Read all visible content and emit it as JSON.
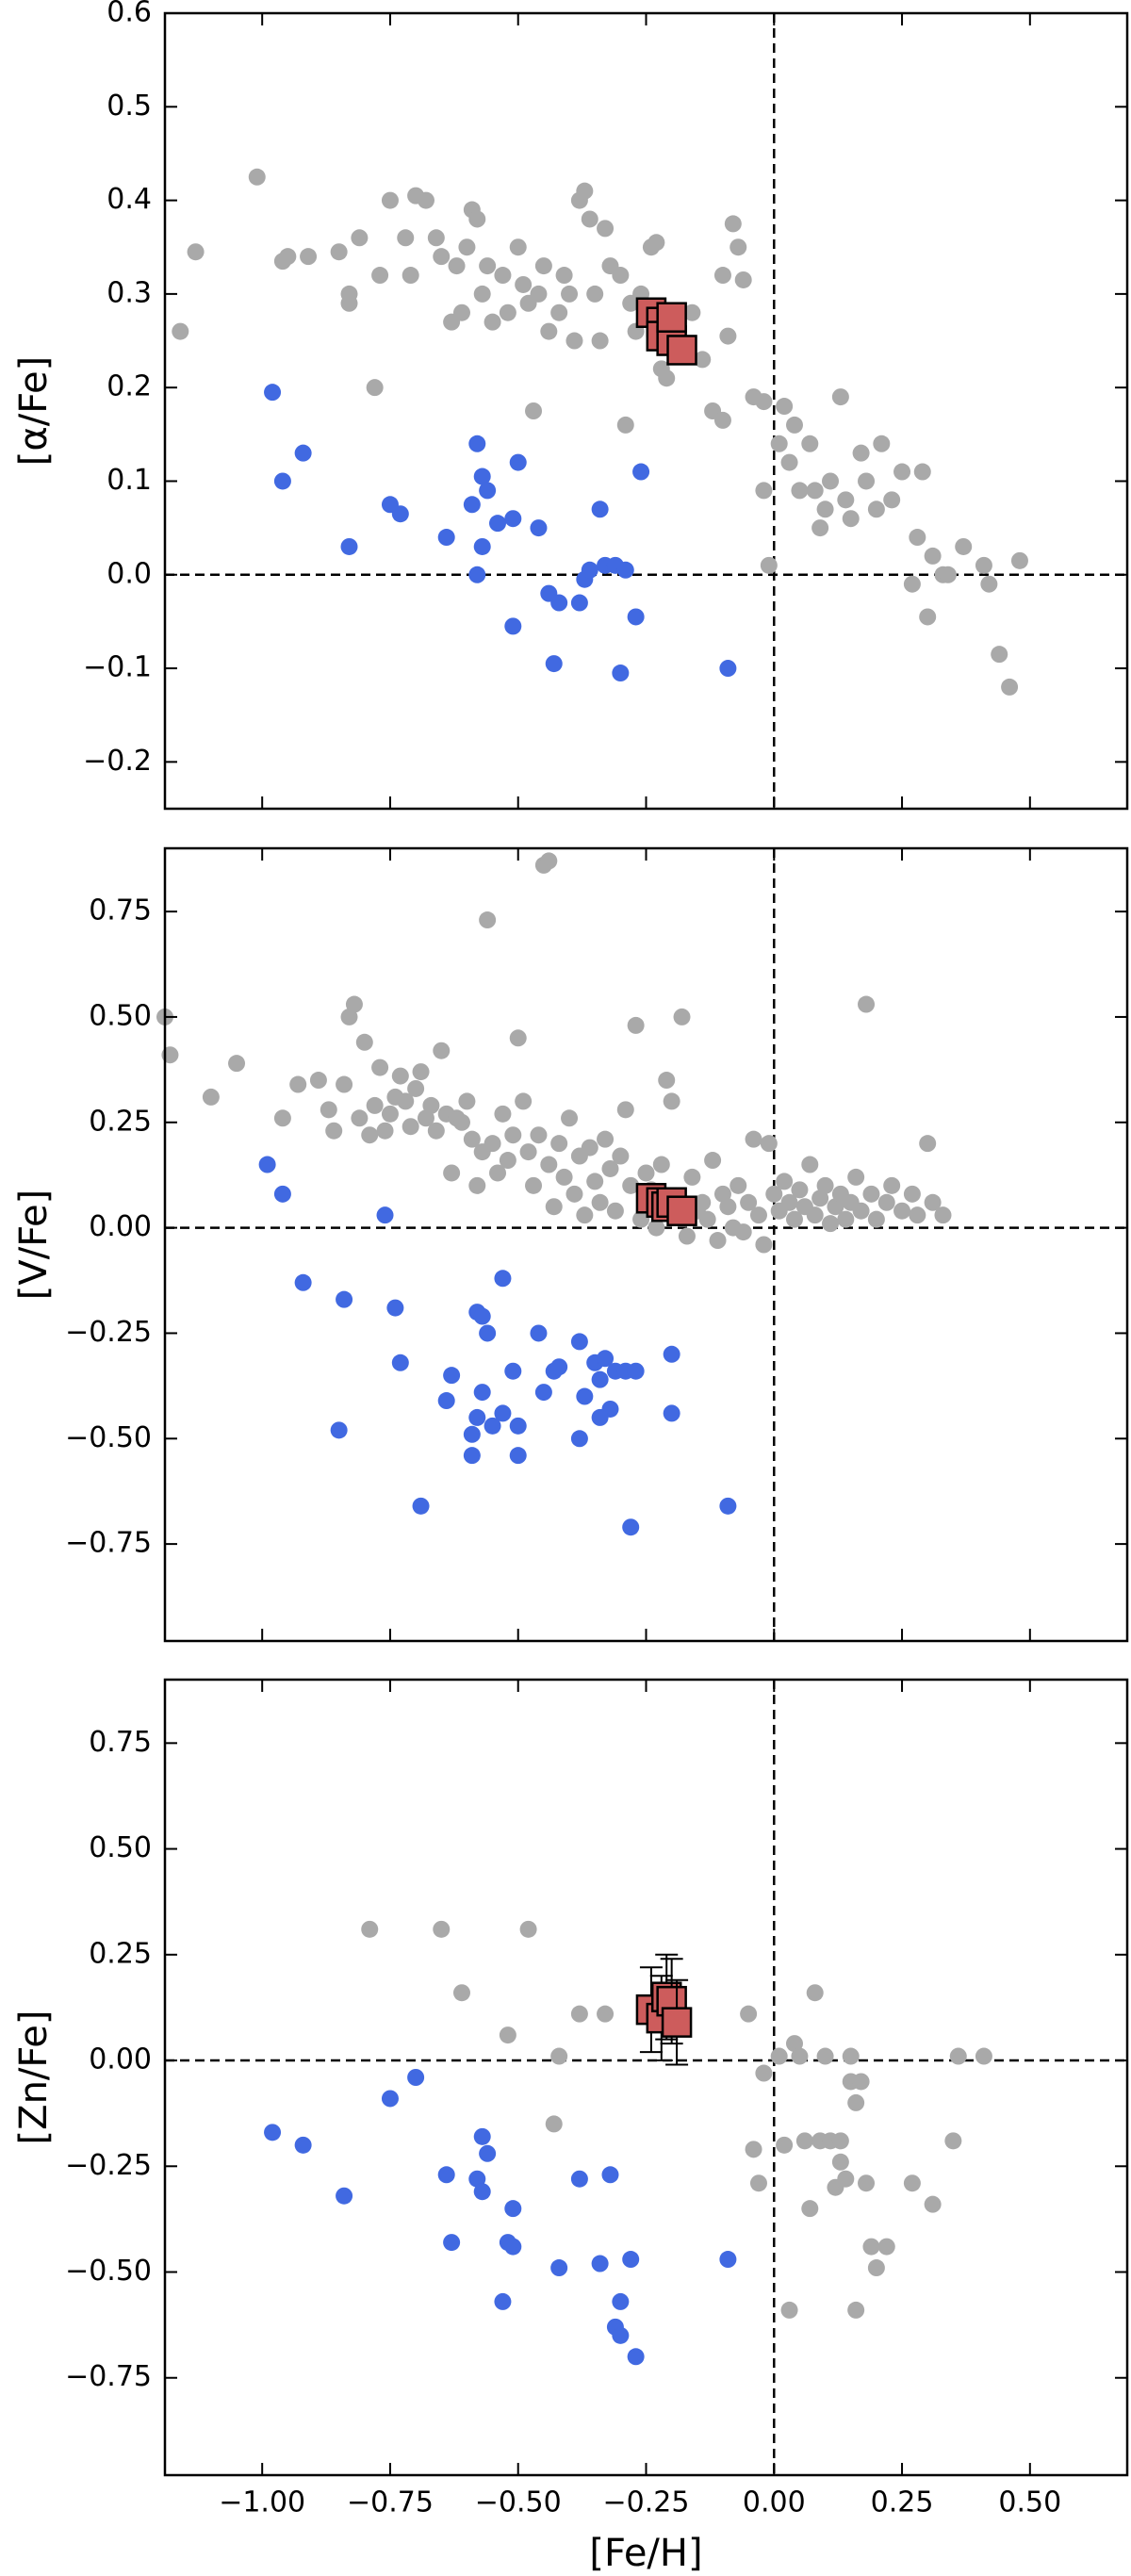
{
  "chart_data": [
    {
      "type": "scatter",
      "ylabel": "[α/Fe]",
      "xlim": [
        -1.19,
        0.69
      ],
      "ylim": [
        -0.25,
        0.6
      ],
      "xticks": [
        -1,
        -0.75,
        -0.5,
        -0.25,
        0,
        0.25,
        0.5
      ],
      "yticks": [
        {
          "value": -0.2,
          "label": "−0.2"
        },
        {
          "value": -0.1,
          "label": "−0.1"
        },
        {
          "value": 0,
          "label": "0.0"
        },
        0.1,
        0.2,
        0.3,
        0.4,
        0.5,
        0.6
      ],
      "hline": 0,
      "vline": 0,
      "series": [
        {
          "color": "#a9a9a9",
          "marker": "circle",
          "x": [
            -1.16,
            -1.13,
            -1.01,
            -0.96,
            -0.95,
            -0.91,
            -0.85,
            -0.83,
            -0.83,
            -0.81,
            -0.78,
            -0.77,
            -0.75,
            -0.72,
            -0.71,
            -0.7,
            -0.68,
            -0.66,
            -0.65,
            -0.63,
            -0.62,
            -0.61,
            -0.6,
            -0.59,
            -0.58,
            -0.57,
            -0.56,
            -0.55,
            -0.53,
            -0.52,
            -0.5,
            -0.49,
            -0.48,
            -0.47,
            -0.46,
            -0.45,
            -0.44,
            -0.42,
            -0.41,
            -0.4,
            -0.39,
            -0.38,
            -0.37,
            -0.36,
            -0.35,
            -0.34,
            -0.33,
            -0.32,
            -0.3,
            -0.29,
            -0.28,
            -0.27,
            -0.26,
            -0.24,
            -0.23,
            -0.22,
            -0.21,
            -0.19,
            -0.17,
            -0.16,
            -0.14,
            -0.12,
            -0.1,
            -0.1,
            -0.09,
            -0.08,
            -0.07,
            -0.06,
            -0.04,
            -0.02,
            -0.02,
            -0.01,
            0.01,
            0.02,
            0.03,
            0.04,
            0.05,
            0.07,
            0.08,
            0.09,
            0.1,
            0.11,
            0.13,
            0.14,
            0.15,
            0.17,
            0.18,
            0.2,
            0.21,
            0.23,
            0.25,
            0.27,
            0.28,
            0.29,
            0.3,
            0.31,
            0.33,
            0.34,
            0.37,
            0.41,
            0.42,
            0.44,
            0.46,
            0.48
          ],
          "values": [
            0.26,
            0.345,
            0.425,
            0.335,
            0.34,
            0.34,
            0.345,
            0.3,
            0.29,
            0.36,
            0.2,
            0.32,
            0.4,
            0.36,
            0.32,
            0.405,
            0.4,
            0.36,
            0.34,
            0.27,
            0.33,
            0.28,
            0.35,
            0.39,
            0.38,
            0.3,
            0.33,
            0.27,
            0.32,
            0.28,
            0.35,
            0.31,
            0.29,
            0.175,
            0.3,
            0.33,
            0.26,
            0.28,
            0.32,
            0.3,
            0.25,
            0.4,
            0.41,
            0.38,
            0.3,
            0.25,
            0.37,
            0.33,
            0.32,
            0.16,
            0.29,
            0.26,
            0.3,
            0.35,
            0.355,
            0.22,
            0.21,
            0.28,
            0.24,
            0.28,
            0.23,
            0.175,
            0.165,
            0.32,
            0.255,
            0.375,
            0.35,
            0.315,
            0.19,
            0.185,
            0.09,
            0.01,
            0.14,
            0.18,
            0.12,
            0.16,
            0.09,
            0.14,
            0.09,
            0.05,
            0.07,
            0.1,
            0.19,
            0.08,
            0.06,
            0.13,
            0.1,
            0.07,
            0.14,
            0.08,
            0.11,
            -0.01,
            0.04,
            0.11,
            -0.045,
            0.02,
            0,
            0,
            0.03,
            0.01,
            -0.01,
            -0.085,
            -0.12,
            0.015
          ]
        },
        {
          "color": "#4169e1",
          "marker": "circle",
          "x": [
            -0.98,
            -0.96,
            -0.92,
            -0.83,
            -0.75,
            -0.73,
            -0.64,
            -0.59,
            -0.58,
            -0.58,
            -0.57,
            -0.57,
            -0.56,
            -0.54,
            -0.51,
            -0.51,
            -0.5,
            -0.46,
            -0.44,
            -0.43,
            -0.42,
            -0.38,
            -0.37,
            -0.36,
            -0.34,
            -0.33,
            -0.31,
            -0.3,
            -0.29,
            -0.27,
            -0.26,
            -0.09
          ],
          "values": [
            0.195,
            0.1,
            0.13,
            0.03,
            0.075,
            0.065,
            0.04,
            0.075,
            0.14,
            0,
            0.105,
            0.03,
            0.09,
            0.055,
            0.06,
            -0.055,
            0.12,
            0.05,
            -0.02,
            -0.095,
            -0.03,
            -0.03,
            -0.005,
            0.005,
            0.07,
            0.01,
            0.01,
            -0.105,
            0.005,
            -0.045,
            0.11,
            -0.1
          ]
        },
        {
          "color": "#cd5c5c",
          "marker": "square",
          "x": [
            -0.24,
            -0.22,
            -0.22,
            -0.2,
            -0.2,
            -0.18
          ],
          "values": [
            0.28,
            0.27,
            0.255,
            0.25,
            0.275,
            0.24
          ]
        }
      ]
    },
    {
      "type": "scatter",
      "ylabel": "[V/Fe]",
      "xlim": [
        -1.19,
        0.69
      ],
      "ylim": [
        -0.98,
        0.9
      ],
      "xticks": [
        -1,
        -0.75,
        -0.5,
        -0.25,
        0,
        0.25,
        0.5
      ],
      "yticks": [
        {
          "value": -0.75,
          "label": "−0.75"
        },
        {
          "value": -0.5,
          "label": "−0.50"
        },
        {
          "value": -0.25,
          "label": "−0.25"
        },
        {
          "value": 0,
          "label": "0.00"
        },
        0.25,
        {
          "value": 0.5,
          "label": "0.50"
        },
        0.75
      ],
      "hline": 0,
      "vline": 0,
      "series": [
        {
          "color": "#a9a9a9",
          "marker": "circle",
          "x": [
            -1.19,
            -1.18,
            -1.1,
            -1.05,
            -0.96,
            -0.93,
            -0.89,
            -0.87,
            -0.86,
            -0.84,
            -0.83,
            -0.82,
            -0.81,
            -0.8,
            -0.79,
            -0.78,
            -0.77,
            -0.76,
            -0.75,
            -0.74,
            -0.73,
            -0.72,
            -0.71,
            -0.7,
            -0.69,
            -0.68,
            -0.67,
            -0.66,
            -0.65,
            -0.64,
            -0.63,
            -0.62,
            -0.61,
            -0.6,
            -0.59,
            -0.58,
            -0.57,
            -0.56,
            -0.55,
            -0.54,
            -0.53,
            -0.52,
            -0.51,
            -0.5,
            -0.49,
            -0.48,
            -0.47,
            -0.46,
            -0.45,
            -0.44,
            -0.44,
            -0.43,
            -0.42,
            -0.41,
            -0.4,
            -0.39,
            -0.38,
            -0.37,
            -0.36,
            -0.35,
            -0.34,
            -0.33,
            -0.32,
            -0.31,
            -0.3,
            -0.29,
            -0.28,
            -0.27,
            -0.26,
            -0.25,
            -0.24,
            -0.23,
            -0.22,
            -0.21,
            -0.2,
            -0.19,
            -0.18,
            -0.17,
            -0.16,
            -0.15,
            -0.14,
            -0.13,
            -0.12,
            -0.11,
            -0.1,
            -0.09,
            -0.08,
            -0.07,
            -0.06,
            -0.05,
            -0.04,
            -0.03,
            -0.02,
            -0.01,
            0,
            0.01,
            0.02,
            0.03,
            0.04,
            0.05,
            0.06,
            0.07,
            0.08,
            0.09,
            0.1,
            0.11,
            0.12,
            0.13,
            0.14,
            0.15,
            0.16,
            0.17,
            0.18,
            0.19,
            0.2,
            0.22,
            0.23,
            0.25,
            0.27,
            0.28,
            0.3,
            0.31,
            0.33
          ],
          "values": [
            0.5,
            0.41,
            0.31,
            0.39,
            0.26,
            0.34,
            0.35,
            0.28,
            0.23,
            0.34,
            0.5,
            0.53,
            0.26,
            0.44,
            0.22,
            0.29,
            0.38,
            0.23,
            0.27,
            0.31,
            0.36,
            0.3,
            0.24,
            0.33,
            0.37,
            0.26,
            0.29,
            0.23,
            0.42,
            0.27,
            0.13,
            0.26,
            0.25,
            0.3,
            0.21,
            0.1,
            0.18,
            0.73,
            0.2,
            0.13,
            0.27,
            0.16,
            0.22,
            0.45,
            0.3,
            0.18,
            0.1,
            0.22,
            0.86,
            0.87,
            0.15,
            0.05,
            0.2,
            0.12,
            0.26,
            0.08,
            0.17,
            0.03,
            0.19,
            0.11,
            0.06,
            0.21,
            0.14,
            0.04,
            0.17,
            0.28,
            0.1,
            0.48,
            0.02,
            0.13,
            0.09,
            0,
            0.15,
            0.35,
            0.3,
            0.07,
            0.5,
            -0.02,
            0.12,
            0.04,
            0.06,
            0.02,
            0.16,
            -0.03,
            0.08,
            0.05,
            0,
            0.1,
            -0.01,
            0.06,
            0.21,
            0.03,
            -0.04,
            0.2,
            0.08,
            0.04,
            0.11,
            0.06,
            0.02,
            0.09,
            0.05,
            0.15,
            0.03,
            0.07,
            0.1,
            0.01,
            0.05,
            0.08,
            0.02,
            0.06,
            0.12,
            0.04,
            0.53,
            0.08,
            0.02,
            0.06,
            0.1,
            0.04,
            0.08,
            0.03,
            0.2,
            0.06,
            0.03
          ]
        },
        {
          "color": "#4169e1",
          "marker": "circle",
          "x": [
            -0.99,
            -0.96,
            -0.92,
            -0.85,
            -0.84,
            -0.76,
            -0.74,
            -0.73,
            -0.69,
            -0.64,
            -0.63,
            -0.59,
            -0.59,
            -0.58,
            -0.58,
            -0.57,
            -0.57,
            -0.56,
            -0.55,
            -0.53,
            -0.53,
            -0.51,
            -0.5,
            -0.5,
            -0.46,
            -0.45,
            -0.43,
            -0.42,
            -0.38,
            -0.38,
            -0.37,
            -0.35,
            -0.34,
            -0.33,
            -0.32,
            -0.31,
            -0.29,
            -0.28,
            -0.34,
            -0.2,
            -0.2,
            -0.27,
            -0.09
          ],
          "values": [
            0.15,
            0.08,
            -0.13,
            -0.48,
            -0.17,
            0.03,
            -0.19,
            -0.32,
            -0.66,
            -0.41,
            -0.35,
            -0.54,
            -0.49,
            -0.45,
            -0.2,
            -0.21,
            -0.39,
            -0.25,
            -0.47,
            -0.12,
            -0.44,
            -0.34,
            -0.47,
            -0.54,
            -0.25,
            -0.39,
            -0.34,
            -0.33,
            -0.27,
            -0.5,
            -0.4,
            -0.32,
            -0.36,
            -0.31,
            -0.43,
            -0.34,
            -0.34,
            -0.71,
            -0.45,
            -0.44,
            -0.3,
            -0.34,
            -0.66
          ]
        },
        {
          "color": "#cd5c5c",
          "marker": "square",
          "x": [
            -0.24,
            -0.22,
            -0.21,
            -0.2,
            -0.18
          ],
          "values": [
            0.07,
            0.06,
            0.05,
            0.06,
            0.04
          ]
        }
      ]
    },
    {
      "type": "scatter",
      "ylabel": "[Zn/Fe]",
      "xlabel": "[Fe/H]",
      "xlim": [
        -1.19,
        0.69
      ],
      "ylim": [
        -0.98,
        0.9
      ],
      "xticks": [
        {
          "value": -1,
          "label": "−1.00"
        },
        {
          "value": -0.75,
          "label": "−0.75"
        },
        {
          "value": -0.5,
          "label": "−0.50"
        },
        {
          "value": -0.25,
          "label": "−0.25"
        },
        {
          "value": 0,
          "label": "0.00"
        },
        0.25,
        {
          "value": 0.5,
          "label": "0.50"
        }
      ],
      "yticks": [
        {
          "value": -0.75,
          "label": "−0.75"
        },
        {
          "value": -0.5,
          "label": "−0.50"
        },
        {
          "value": -0.25,
          "label": "−0.25"
        },
        {
          "value": 0,
          "label": "0.00"
        },
        0.25,
        {
          "value": 0.5,
          "label": "0.50"
        },
        0.75
      ],
      "hline": 0,
      "vline": 0,
      "series": [
        {
          "color": "#a9a9a9",
          "marker": "circle",
          "x": [
            -0.79,
            -0.65,
            -0.61,
            -0.48,
            -0.52,
            -0.42,
            -0.43,
            -0.38,
            -0.33,
            -0.05,
            -0.04,
            -0.03,
            -0.02,
            0.01,
            0.03,
            0.04,
            0.05,
            0.07,
            0.08,
            0.09,
            0.1,
            0.11,
            0.12,
            0.13,
            0.14,
            0.15,
            0.15,
            0.16,
            0.16,
            0.17,
            0.18,
            0.19,
            0.2,
            0.22,
            0.27,
            0.31,
            0.35,
            0.36,
            0.41,
            0.02,
            0.06,
            0.13
          ],
          "values": [
            0.31,
            0.31,
            0.16,
            0.31,
            0.06,
            0.01,
            -0.15,
            0.11,
            0.11,
            0.11,
            -0.21,
            -0.29,
            -0.03,
            0.01,
            -0.59,
            0.04,
            0.01,
            -0.35,
            0.16,
            -0.19,
            0.01,
            -0.19,
            -0.3,
            -0.24,
            -0.28,
            -0.05,
            0.01,
            -0.59,
            -0.1,
            -0.05,
            -0.29,
            -0.44,
            -0.49,
            -0.44,
            -0.29,
            -0.34,
            -0.19,
            0.01,
            0.01,
            -0.2,
            -0.19,
            -0.19
          ]
        },
        {
          "color": "#4169e1",
          "marker": "circle",
          "x": [
            -0.98,
            -0.92,
            -0.84,
            -0.75,
            -0.7,
            -0.64,
            -0.63,
            -0.58,
            -0.57,
            -0.57,
            -0.56,
            -0.53,
            -0.52,
            -0.51,
            -0.51,
            -0.42,
            -0.38,
            -0.34,
            -0.32,
            -0.31,
            -0.3,
            -0.3,
            -0.28,
            -0.27,
            -0.09
          ],
          "values": [
            -0.17,
            -0.2,
            -0.32,
            -0.09,
            -0.04,
            -0.27,
            -0.43,
            -0.28,
            -0.18,
            -0.31,
            -0.22,
            -0.57,
            -0.43,
            -0.44,
            -0.35,
            -0.49,
            -0.28,
            -0.48,
            -0.27,
            -0.63,
            -0.57,
            -0.65,
            -0.47,
            -0.7,
            -0.47
          ]
        },
        {
          "color": "#cd5c5c",
          "marker": "square",
          "x": [
            -0.24,
            -0.22,
            -0.21,
            -0.2,
            -0.19
          ],
          "values": [
            0.12,
            0.1,
            0.15,
            0.14,
            0.09
          ],
          "yerr": [
            0.1,
            0.1,
            0.1,
            0.1,
            0.1
          ]
        }
      ]
    }
  ]
}
